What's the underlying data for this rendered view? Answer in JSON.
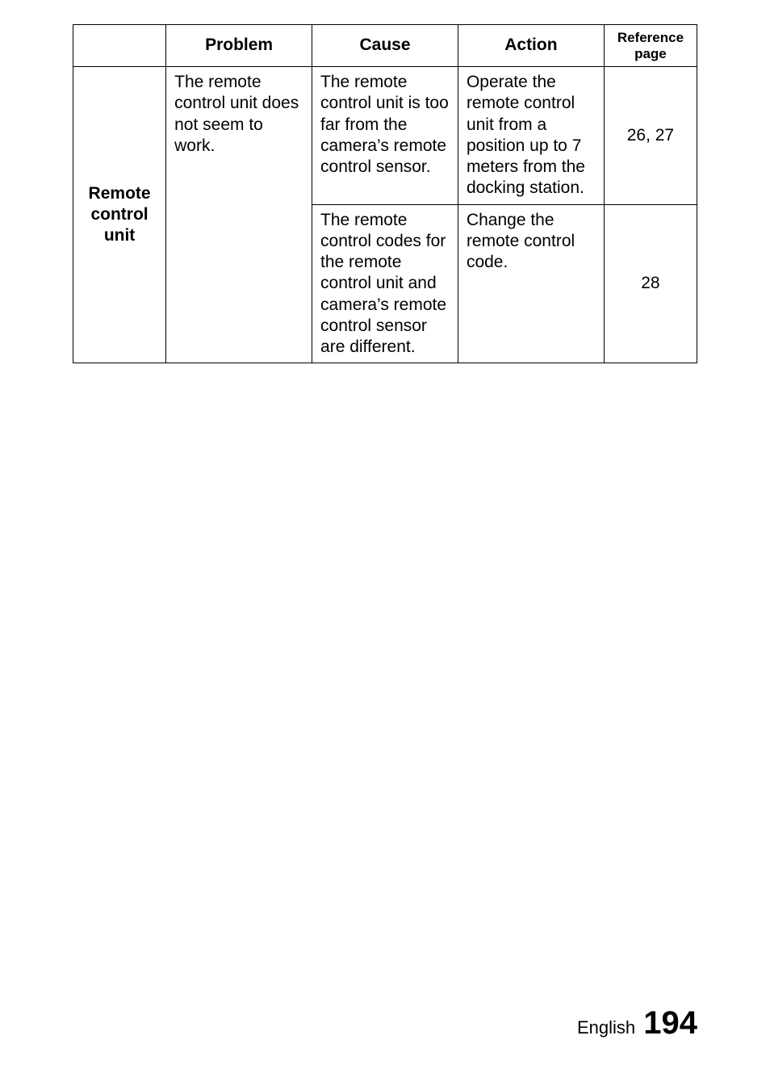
{
  "table": {
    "headers": {
      "problem": "Problem",
      "cause": "Cause",
      "action": "Action",
      "reference": "Reference page"
    },
    "category": "Remote control unit",
    "rows": [
      {
        "problem": "The remote control unit does not seem to work.",
        "cause": "The remote control unit is too far from the camera’s remote control sensor.",
        "action": "Operate the remote control unit from a position up to 7 meters from the docking station.",
        "reference": "26, 27"
      },
      {
        "cause": "The remote control codes for the remote control unit and camera’s remote control sensor are different.",
        "action": "Change the remote control code.",
        "reference": "28"
      }
    ]
  },
  "footer": {
    "language": "English",
    "page_number": "194"
  }
}
